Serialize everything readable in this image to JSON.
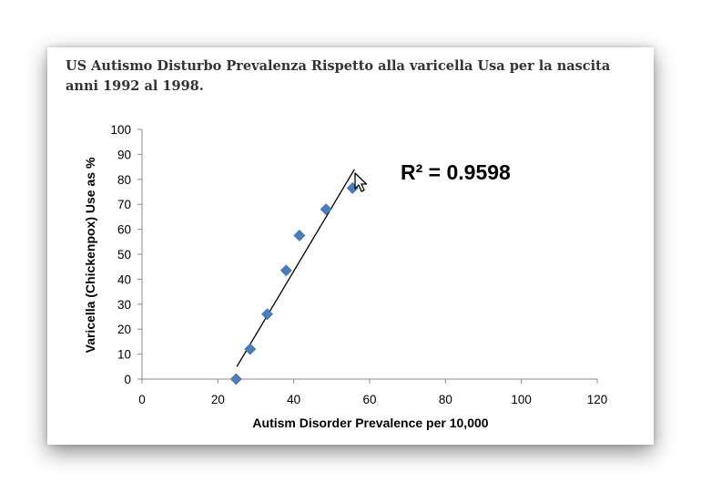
{
  "title": "US Autismo Disturbo Prevalenza Rispetto alla varicella Usa per la nascita anni 1992 al 1998.",
  "chart_data": {
    "type": "scatter",
    "xlabel": "Autism Disorder Prevalence per 10,000",
    "ylabel": "Varicella (Chickenpox) Use as %",
    "xlim": [
      0,
      120
    ],
    "ylim": [
      0,
      100
    ],
    "xticks": [
      0,
      20,
      40,
      60,
      80,
      100,
      120
    ],
    "yticks": [
      0,
      10,
      20,
      30,
      40,
      50,
      60,
      70,
      80,
      90,
      100
    ],
    "grid": false,
    "points": [
      {
        "x": 24.8,
        "y": 0
      },
      {
        "x": 28.5,
        "y": 12
      },
      {
        "x": 33,
        "y": 26
      },
      {
        "x": 38,
        "y": 43.5
      },
      {
        "x": 41.5,
        "y": 57.5
      },
      {
        "x": 48.5,
        "y": 68
      },
      {
        "x": 55.5,
        "y": 76.5
      }
    ],
    "trendline": {
      "x": [
        25,
        56
      ],
      "y": [
        5,
        84
      ]
    },
    "annotation": "R² = 0.9598",
    "marker_color": "#4a7ebb",
    "line_color": "#000000"
  }
}
